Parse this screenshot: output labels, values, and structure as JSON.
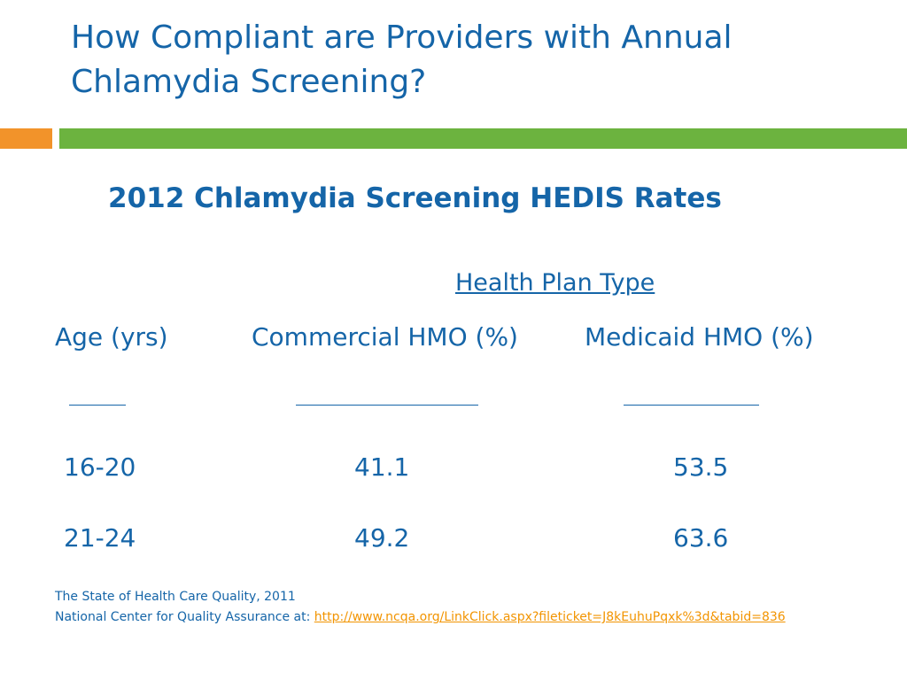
{
  "slide": {
    "title": "How Compliant are Providers with Annual Chlamydia Screening?",
    "colors": {
      "title": "#1565a8",
      "accent_orange": "#f2932a",
      "accent_green": "#6cb33f",
      "link": "#f29400"
    }
  },
  "table": {
    "title": "2012 Chlamydia Screening HEDIS Rates",
    "group_header": "Health Plan Type",
    "columns": [
      "Age (yrs)",
      "Commercial HMO (%)",
      "Medicaid HMO (%)"
    ],
    "rows": [
      [
        "16-20",
        "41.1",
        "53.5"
      ],
      [
        "21-24",
        "49.2",
        "63.6"
      ]
    ]
  },
  "source": {
    "line1": "The State of Health Care Quality, 2011",
    "line2_prefix": "National Center for Quality Assurance at: ",
    "link_text": "http://www.ncqa.org/LinkClick.aspx?fileticket=J8kEuhuPqxk%3d&tabid=836"
  }
}
